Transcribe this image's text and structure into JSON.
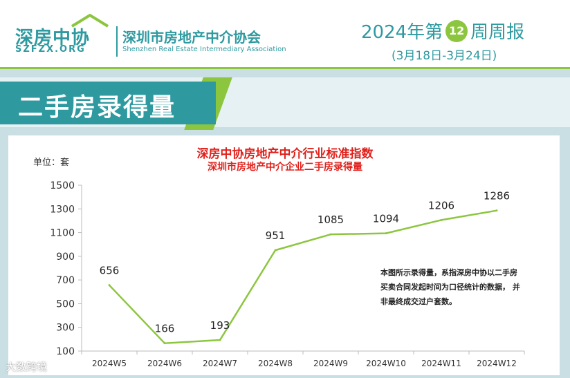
{
  "header": {
    "logo_cn": "深房中协",
    "logo_en": "SZFZX.ORG",
    "assoc_cn": "深圳市房地产中介协会",
    "assoc_en": "Shenzhen Real Estate Intermediary Association",
    "weekly_prefix": "2024年第",
    "week_number": "12",
    "weekly_suffix": "周周报",
    "date_range": "(3月18日-3月24日)"
  },
  "section": {
    "title": "二手房录得量"
  },
  "chart_meta": {
    "title": "深房中协房地产中介行业标准指数",
    "subtitle": "深圳市房地产中介企业二手房录得量",
    "unit": "单位：套",
    "note": "本图所示录得量，系指深房中协以二手房买卖合同发起时间为口径统计的数据， 并非最终成交过户套数。"
  },
  "watermark": "大数跨境",
  "colors": {
    "teal": "#2e9aa0",
    "green": "#8cc63f",
    "line": "#8cc63f",
    "title_red": "#e0201b"
  },
  "chart_data": {
    "type": "line",
    "title": "深房中协房地产中介行业标准指数",
    "subtitle": "深圳市房地产中介企业二手房录得量",
    "ylabel": "单位：套",
    "categories": [
      "2024W5",
      "2024W6",
      "2024W7",
      "2024W8",
      "2024W9",
      "2024W10",
      "2024W11",
      "2024W12"
    ],
    "values": [
      656,
      166,
      193,
      951,
      1085,
      1094,
      1206,
      1286
    ],
    "ylim": [
      100,
      1500
    ],
    "yticks": [
      100,
      300,
      500,
      700,
      900,
      1100,
      1300,
      1500
    ],
    "grid": false,
    "legend": "none"
  }
}
